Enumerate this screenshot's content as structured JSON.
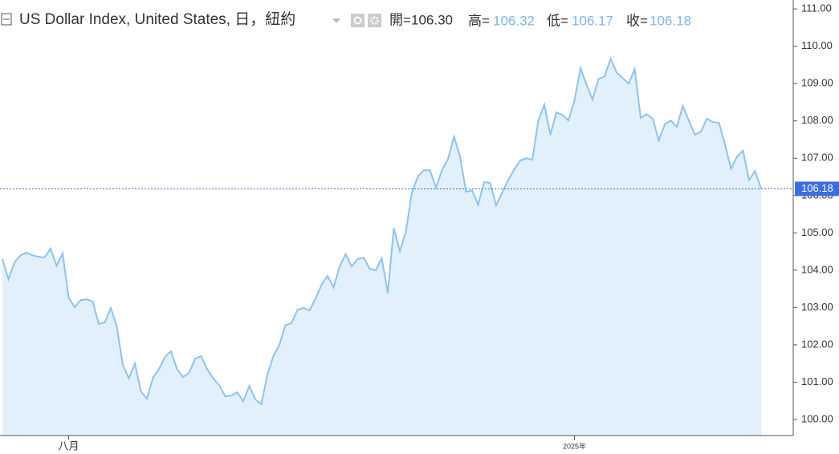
{
  "header": {
    "title": "US Dollar Index, United States, 日，紐約",
    "open_label": "開=",
    "open": "106.30",
    "high_label": "高=",
    "high": "106.32",
    "low_label": "低=",
    "low": "106.17",
    "close_label": "收=",
    "close": "106.18"
  },
  "chart_data": {
    "type": "area",
    "color": "#8fc3ec",
    "fill": "#e1f0fa",
    "grid": false,
    "categories": [
      null,
      null,
      null,
      null,
      null,
      null,
      null,
      null,
      null,
      null,
      null,
      "八月",
      null,
      null,
      null,
      null,
      null,
      null,
      null,
      null,
      null,
      null,
      null,
      null,
      null,
      null,
      null,
      null,
      null,
      null,
      null,
      null,
      null,
      null,
      null,
      null,
      null,
      null,
      null,
      null,
      null,
      null,
      null,
      null,
      null,
      null,
      null,
      null,
      null,
      null,
      null,
      null,
      null,
      null,
      null,
      null,
      null,
      null,
      null,
      null,
      null,
      null,
      null,
      null,
      null,
      null,
      null,
      null,
      null,
      null,
      null,
      null,
      null,
      null,
      null,
      null,
      null,
      null,
      null,
      null,
      null,
      null,
      null,
      null,
      null,
      null,
      null,
      null,
      null,
      null,
      null,
      null,
      null,
      null,
      null,
      "2025年",
      null,
      null,
      null,
      null,
      null,
      null,
      null,
      null,
      null,
      null,
      null,
      null,
      null,
      null,
      null,
      null,
      null,
      null,
      null,
      null,
      null,
      null,
      null,
      null,
      null,
      null,
      null,
      null,
      null,
      null,
      null
    ],
    "values": [
      104.3,
      103.76,
      104.21,
      104.4,
      104.47,
      104.4,
      104.36,
      104.34,
      104.58,
      104.12,
      104.45,
      103.27,
      103.01,
      103.2,
      103.22,
      103.16,
      102.56,
      102.6,
      102.99,
      102.49,
      101.46,
      101.1,
      101.5,
      100.75,
      100.56,
      101.12,
      101.35,
      101.68,
      101.83,
      101.35,
      101.14,
      101.25,
      101.63,
      101.7,
      101.35,
      101.1,
      100.92,
      100.62,
      100.64,
      100.73,
      100.49,
      100.9,
      100.54,
      100.41,
      101.2,
      101.7,
      102.0,
      102.53,
      102.58,
      102.94,
      102.99,
      102.92,
      103.24,
      103.61,
      103.85,
      103.54,
      104.1,
      104.43,
      104.1,
      104.3,
      104.34,
      104.04,
      104.0,
      104.32,
      103.39,
      105.13,
      104.51,
      105.03,
      106.08,
      106.51,
      106.68,
      106.68,
      106.21,
      106.68,
      106.98,
      107.58,
      107.05,
      106.1,
      106.14,
      105.76,
      106.36,
      106.34,
      105.74,
      106.08,
      106.42,
      106.7,
      106.94,
      107.0,
      106.96,
      108.01,
      108.44,
      107.63,
      108.23,
      108.16,
      108.01,
      108.55,
      109.41,
      108.98,
      108.57,
      109.13,
      109.19,
      109.67,
      109.3,
      109.15,
      109.0,
      109.39,
      108.08,
      108.18,
      108.06,
      107.48,
      107.91,
      108.01,
      107.84,
      108.4,
      108.01,
      107.63,
      107.71,
      108.06,
      107.97,
      107.95,
      107.37,
      106.72,
      107.05,
      107.2,
      106.42,
      106.66,
      106.18
    ],
    "ylim": [
      99.57,
      111.24
    ],
    "yticks": [
      {
        "value": 100,
        "label": "100.00"
      },
      {
        "value": 101,
        "label": "101.00"
      },
      {
        "value": 102,
        "label": "102.00"
      },
      {
        "value": 103,
        "label": "103.00"
      },
      {
        "value": 104,
        "label": "104.00"
      },
      {
        "value": 105,
        "label": "105.00"
      },
      {
        "value": 106,
        "label": "106.00"
      },
      {
        "value": 107,
        "label": "107.00"
      },
      {
        "value": 108,
        "label": "108.00"
      },
      {
        "value": 109,
        "label": "109.00"
      },
      {
        "value": 110,
        "label": "110.00"
      },
      {
        "value": 111,
        "label": "111.00"
      }
    ],
    "current_price": 106.18,
    "current_color": "#3d6ee0"
  }
}
